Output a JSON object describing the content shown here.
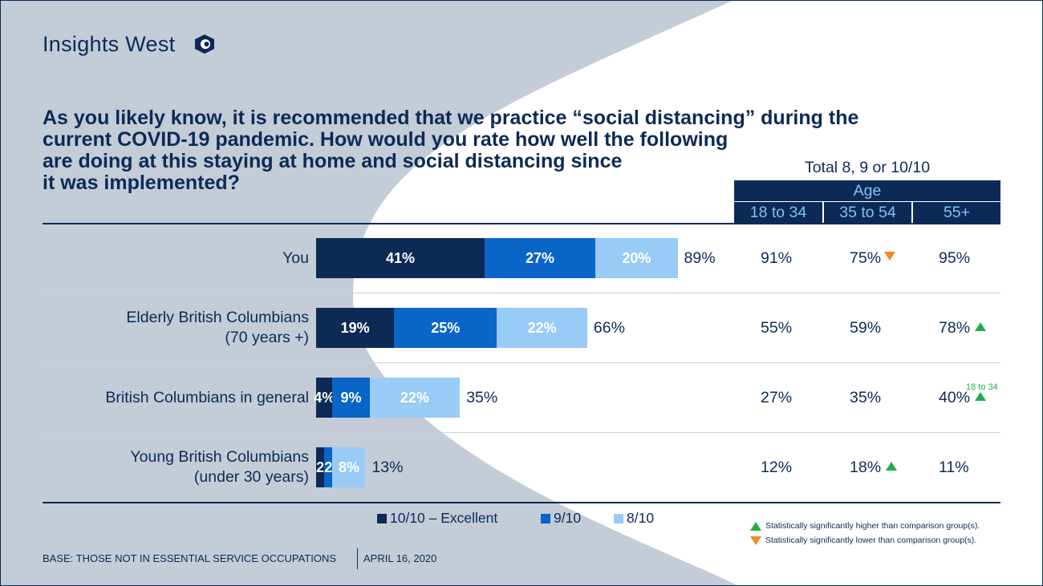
{
  "brand": {
    "name": "Insights West",
    "icon": "eye-logo-icon"
  },
  "question": [
    "As you likely know, it is recommended that we practice “social distancing” during the",
    "current COVID-19 pandemic. How would you rate how well the following",
    "are doing at this staying at home and social distancing since",
    "it was implemented?"
  ],
  "total_header": "Total 8, 9 or 10/10",
  "age_header": "Age",
  "age_groups": [
    "18 to 34",
    "35 to 54",
    "55+"
  ],
  "colors": {
    "navy": "#0d2a56",
    "excellent": "#0d2a56",
    "nine": "#0a65c9",
    "eight": "#99cbf7",
    "up": "#1fae4b",
    "down": "#f08a24",
    "bg_shape": "#c3ccd7"
  },
  "chart_data": {
    "type": "bar",
    "orientation": "horizontal",
    "stacked": true,
    "categories": [
      "You",
      "Elderly British Columbians (70 years +)",
      "British Columbians in general",
      "Young British Columbians (under 30 years)"
    ],
    "category_lines": [
      [
        "You"
      ],
      [
        "Elderly British Columbians",
        "(70 years +)"
      ],
      [
        "British Columbians in general"
      ],
      [
        "Young British Columbians",
        "(under 30 years)"
      ]
    ],
    "series": [
      {
        "name": "10/10 – Excellent",
        "values": [
          41,
          19,
          4,
          2
        ],
        "labels": [
          "41%",
          "19%",
          "4%",
          "2"
        ]
      },
      {
        "name": "9/10",
        "values": [
          27,
          25,
          9,
          2
        ],
        "labels": [
          "27%",
          "25%",
          "9%",
          "2"
        ]
      },
      {
        "name": "8/10",
        "values": [
          20,
          22,
          22,
          8
        ],
        "labels": [
          "20%",
          "22%",
          "22%",
          "8%"
        ]
      }
    ],
    "totals": [
      "89%",
      "66%",
      "35%",
      "13%"
    ],
    "age_table": {
      "columns": [
        "18 to 34",
        "35 to 54",
        "55+"
      ],
      "rows": [
        [
          {
            "value": "91%",
            "sig": ""
          },
          {
            "value": "75%",
            "sig": "down"
          },
          {
            "value": "95%",
            "sig": ""
          }
        ],
        [
          {
            "value": "55%",
            "sig": ""
          },
          {
            "value": "59%",
            "sig": ""
          },
          {
            "value": "78%",
            "sig": "up"
          }
        ],
        [
          {
            "value": "27%",
            "sig": ""
          },
          {
            "value": "35%",
            "sig": ""
          },
          {
            "value": "40%",
            "sig": "up",
            "note": "18 to 34"
          }
        ],
        [
          {
            "value": "12%",
            "sig": ""
          },
          {
            "value": "18%",
            "sig": "up"
          },
          {
            "value": "11%",
            "sig": ""
          }
        ]
      ]
    },
    "xlim": [
      0,
      100
    ]
  },
  "legend": {
    "items": [
      {
        "label": "10/10 – Excellent",
        "color": "#0d2a56"
      },
      {
        "label": "9/10",
        "color": "#0a65c9"
      },
      {
        "label": "8/10",
        "color": "#99cbf7"
      }
    ]
  },
  "sig_legend": {
    "higher": "Statistically significantly higher than comparison group(s).",
    "lower": "Statistically significantly lower than comparison group(s)."
  },
  "footer": {
    "base": "BASE: THOSE NOT IN ESSENTIAL SERVICE OCCUPATIONS",
    "date": "APRIL 16, 2020"
  }
}
